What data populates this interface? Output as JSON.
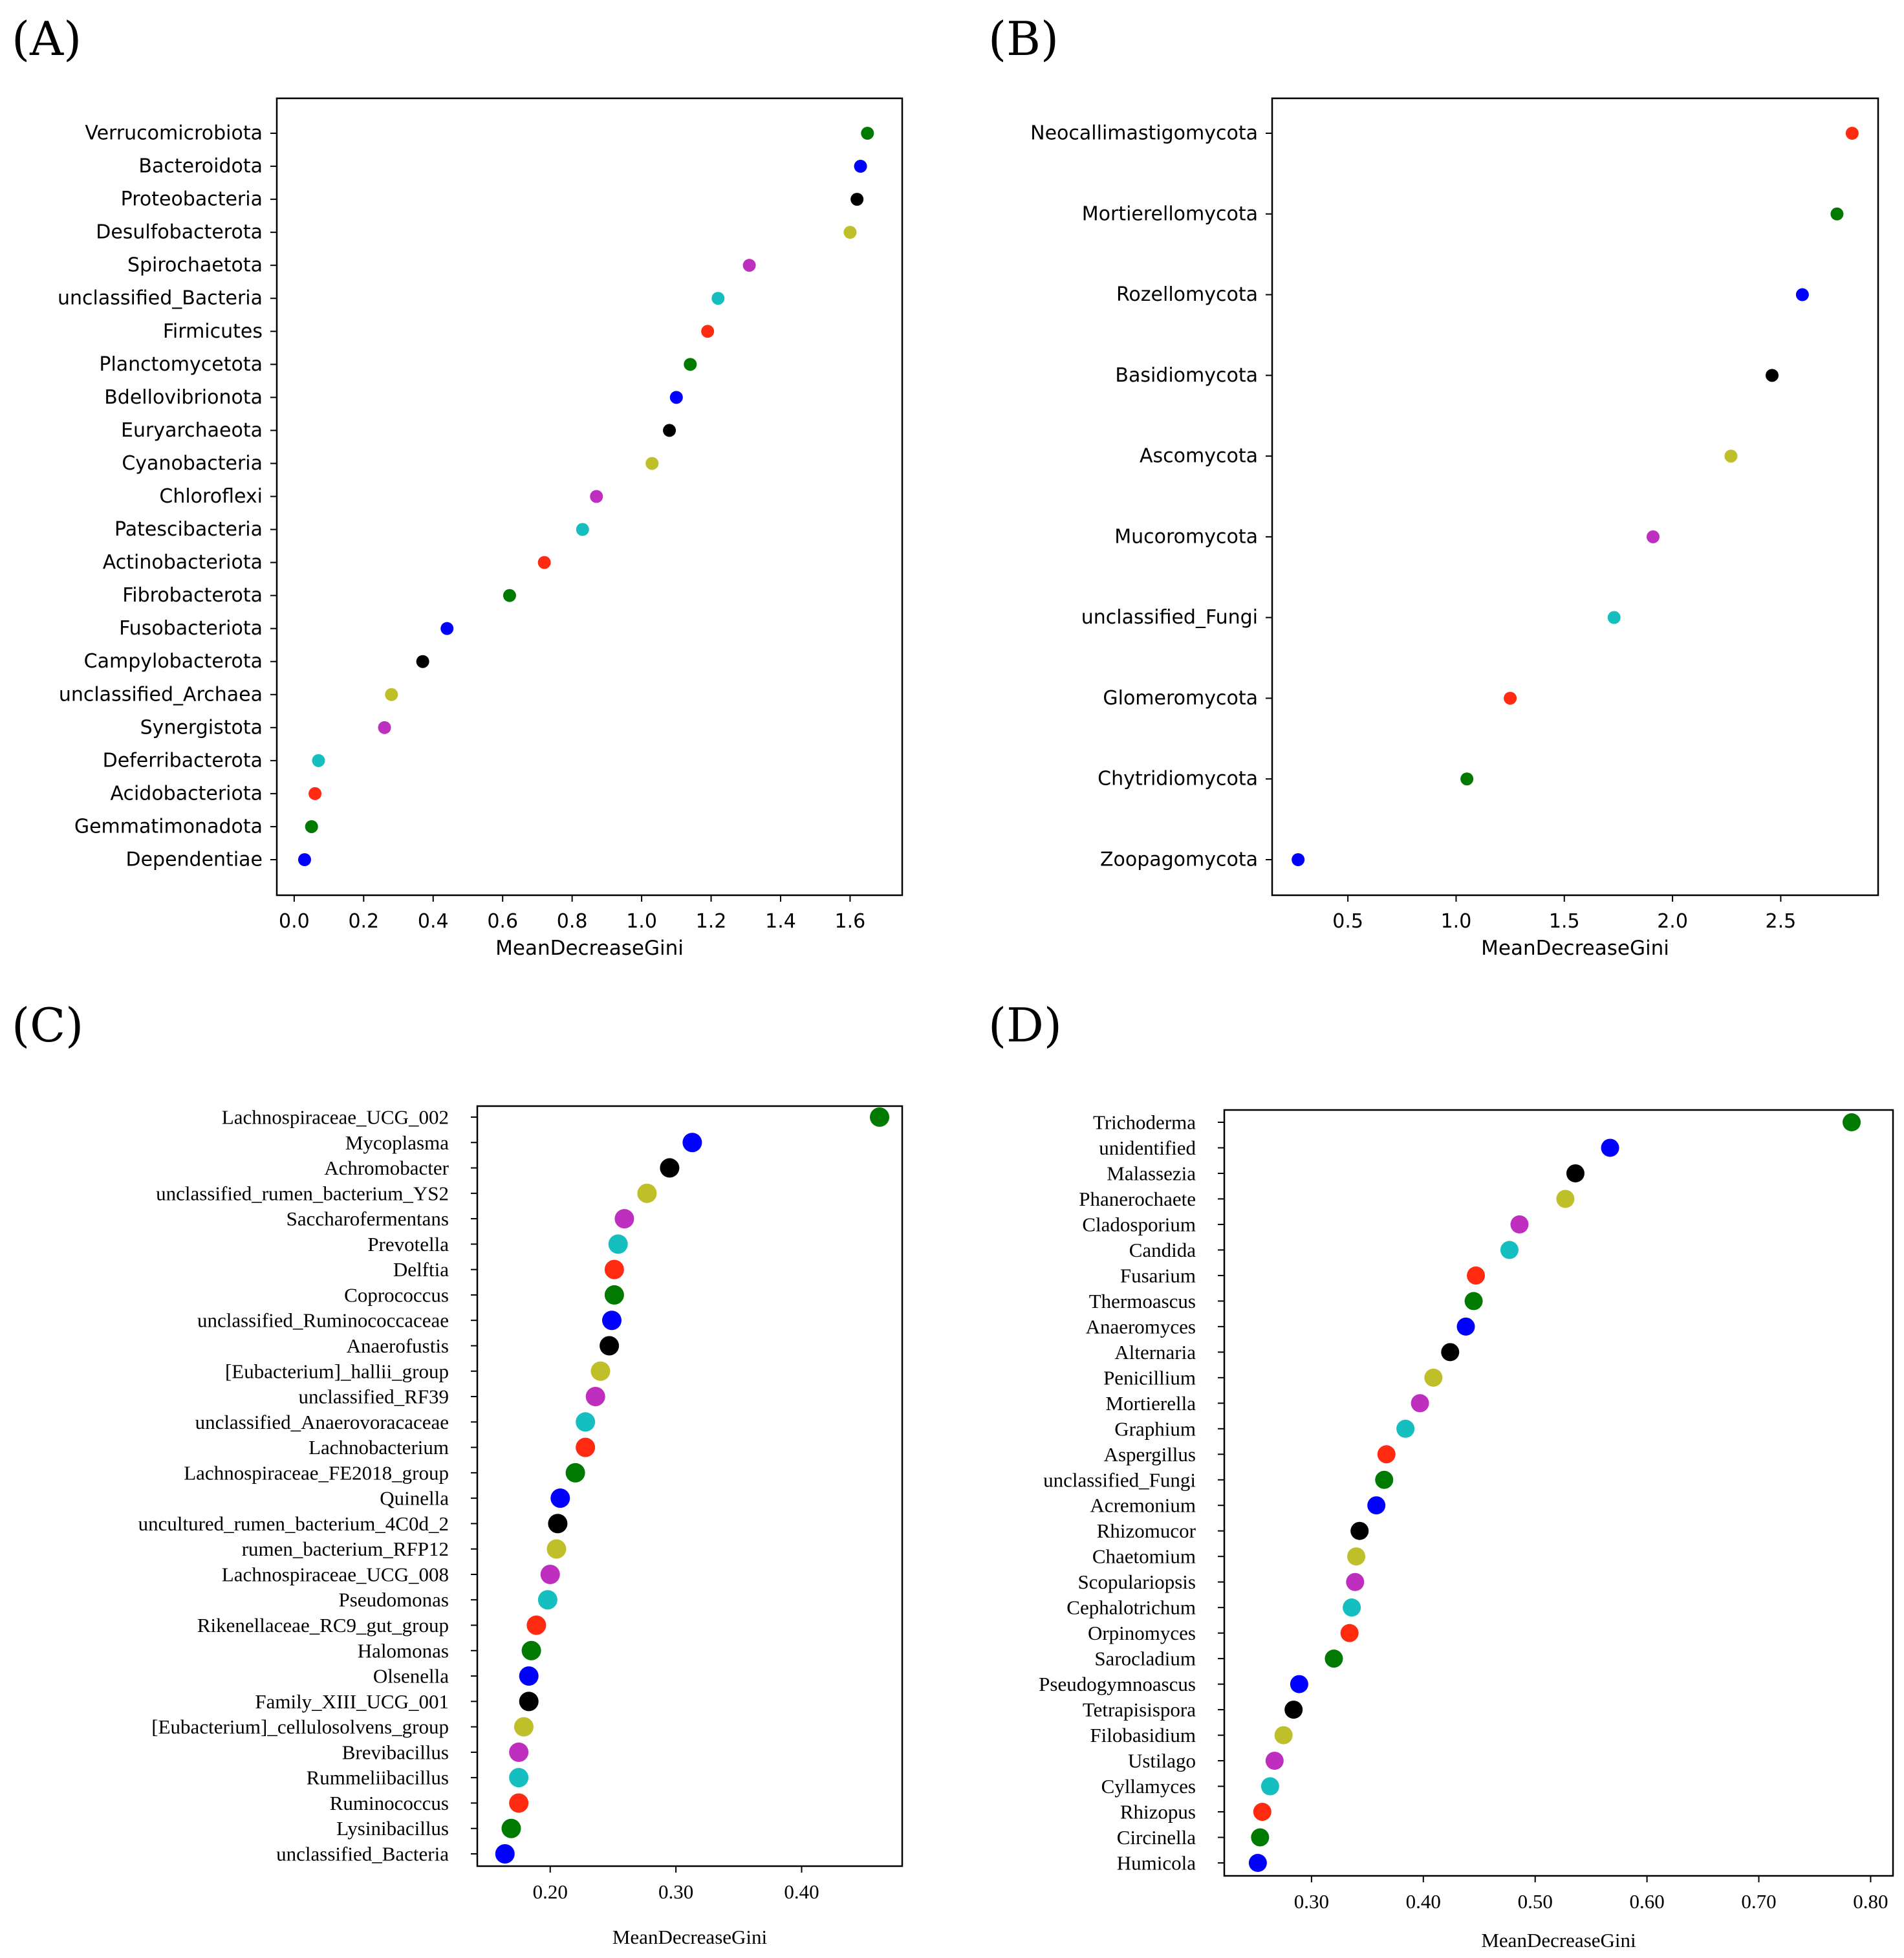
{
  "chart_data": [
    {
      "id": "A",
      "panel_label": "(A)",
      "type": "scatter",
      "xlabel": "MeanDecreaseGini",
      "xlim": [
        -0.05,
        1.75
      ],
      "xticks": [
        "0.0",
        "0.2",
        "0.4",
        "0.6",
        "0.8",
        "1.0",
        "1.2",
        "1.4",
        "1.6"
      ],
      "xtick_values": [
        0,
        0.2,
        0.4,
        0.6,
        0.8,
        1.0,
        1.2,
        1.4,
        1.6
      ],
      "grid": false,
      "categories": [
        "Verrucomicrobiota",
        "Bacteroidota",
        "Proteobacteria",
        "Desulfobacterota",
        "Spirochaetota",
        "unclassified_Bacteria",
        "Firmicutes",
        "Planctomycetota",
        "Bdellovibrionota",
        "Euryarchaeota",
        "Cyanobacteria",
        "Chloroflexi",
        "Patescibacteria",
        "Actinobacteriota",
        "Fibrobacterota",
        "Fusobacteriota",
        "Campylobacterota",
        "unclassified_Archaea",
        "Synergistota",
        "Deferribacterota",
        "Acidobacteriota",
        "Gemmatimonadota",
        "Dependentiae"
      ],
      "values": [
        1.65,
        1.63,
        1.62,
        1.6,
        1.31,
        1.22,
        1.19,
        1.14,
        1.1,
        1.08,
        1.03,
        0.87,
        0.83,
        0.72,
        0.62,
        0.44,
        0.37,
        0.28,
        0.26,
        0.07,
        0.06,
        0.05,
        0.03
      ],
      "colors": [
        "#007a00",
        "#0000ff",
        "#000000",
        "#bfbf2a",
        "#bf2fbf",
        "#16bfbf",
        "#ff2a0f",
        "#007a00",
        "#0000ff",
        "#000000",
        "#bfbf2a",
        "#bf2fbf",
        "#16bfbf",
        "#ff2a0f",
        "#007a00",
        "#0000ff",
        "#000000",
        "#bfbf2a",
        "#bf2fbf",
        "#16bfbf",
        "#ff2a0f",
        "#007a00",
        "#0000ff"
      ]
    },
    {
      "id": "B",
      "panel_label": "(B)",
      "type": "scatter",
      "xlabel": "MeanDecreaseGini",
      "xlim": [
        0.15,
        2.95
      ],
      "xticks": [
        "0.5",
        "1.0",
        "1.5",
        "2.0",
        "2.5"
      ],
      "xtick_values": [
        0.5,
        1.0,
        1.5,
        2.0,
        2.5
      ],
      "grid": false,
      "categories": [
        "Neocallimastigomycota",
        "Mortierellomycota",
        "Rozellomycota",
        "Basidiomycota",
        "Ascomycota",
        "Mucoromycota",
        "unclassified_Fungi",
        "Glomeromycota",
        "Chytridiomycota",
        "Zoopagomycota"
      ],
      "values": [
        2.83,
        2.76,
        2.6,
        2.46,
        2.27,
        1.91,
        1.73,
        1.25,
        1.05,
        0.27
      ],
      "colors": [
        "#ff2a0f",
        "#007a00",
        "#0000ff",
        "#000000",
        "#bfbf2a",
        "#bf2fbf",
        "#16bfbf",
        "#ff2a0f",
        "#007a00",
        "#0000ff"
      ]
    },
    {
      "id": "C",
      "panel_label": "(C)",
      "type": "scatter",
      "xlabel": "MeanDecreaseGini",
      "xlim": [
        0.142,
        0.48
      ],
      "xticks": [
        "0.20",
        "0.30",
        "0.40"
      ],
      "xtick_values": [
        0.2,
        0.3,
        0.4
      ],
      "grid": false,
      "categories": [
        "Lachnospiraceae_UCG_002",
        "Mycoplasma",
        "Achromobacter",
        "unclassified_rumen_bacterium_YS2",
        "Saccharofermentans",
        "Prevotella",
        "Delftia",
        "Coprococcus",
        "unclassified_Ruminococcaceae",
        "Anaerofustis",
        "[Eubacterium]_hallii_group",
        "unclassified_RF39",
        "unclassified_Anaerovoracaceae",
        "Lachnobacterium",
        "Lachnospiraceae_FE2018_group",
        "Quinella",
        "uncultured_rumen_bacterium_4C0d_2",
        "rumen_bacterium_RFP12",
        "Lachnospiraceae_UCG_008",
        "Pseudomonas",
        "Rikenellaceae_RC9_gut_group",
        "Halomonas",
        "Olsenella",
        "Family_XIII_UCG_001",
        "[Eubacterium]_cellulosolvens_group",
        "Brevibacillus",
        "Rummeliibacillus",
        "Ruminococcus",
        "Lysinibacillus",
        "unclassified_Bacteria"
      ],
      "values": [
        0.462,
        0.313,
        0.295,
        0.277,
        0.259,
        0.254,
        0.251,
        0.251,
        0.249,
        0.247,
        0.24,
        0.236,
        0.228,
        0.228,
        0.22,
        0.208,
        0.206,
        0.205,
        0.2,
        0.198,
        0.189,
        0.185,
        0.183,
        0.183,
        0.179,
        0.175,
        0.175,
        0.175,
        0.169,
        0.164
      ],
      "colors": [
        "#007a00",
        "#0000ff",
        "#000000",
        "#bfbf2a",
        "#bf2fbf",
        "#16bfbf",
        "#ff2a0f",
        "#007a00",
        "#0000ff",
        "#000000",
        "#bfbf2a",
        "#bf2fbf",
        "#16bfbf",
        "#ff2a0f",
        "#007a00",
        "#0000ff",
        "#000000",
        "#bfbf2a",
        "#bf2fbf",
        "#16bfbf",
        "#ff2a0f",
        "#007a00",
        "#0000ff",
        "#000000",
        "#bfbf2a",
        "#bf2fbf",
        "#16bfbf",
        "#ff2a0f",
        "#007a00",
        "#0000ff"
      ]
    },
    {
      "id": "D",
      "panel_label": "(D)",
      "type": "scatter",
      "xlabel": "MeanDecreaseGini",
      "xlim": [
        0.222,
        0.82
      ],
      "xticks": [
        "0.30",
        "0.40",
        "0.50",
        "0.60",
        "0.70",
        "0.80"
      ],
      "xtick_values": [
        0.3,
        0.4,
        0.5,
        0.6,
        0.7,
        0.8
      ],
      "grid": false,
      "categories": [
        "Trichoderma",
        "unidentified",
        "Malassezia",
        "Phanerochaete",
        "Cladosporium",
        "Candida",
        "Fusarium",
        "Thermoascus",
        "Anaeromyces",
        "Alternaria",
        "Penicillium",
        "Mortierella",
        "Graphium",
        "Aspergillus",
        "unclassified_Fungi",
        "Acremonium",
        "Rhizomucor",
        "Chaetomium",
        "Scopulariopsis",
        "Cephalotrichum",
        "Orpinomyces",
        "Sarocladium",
        "Pseudogymnoascus",
        "Tetrapisispora",
        "Filobasidium",
        "Ustilago",
        "Cyllamyces",
        "Rhizopus",
        "Circinella",
        "Humicola"
      ],
      "values": [
        0.783,
        0.567,
        0.536,
        0.527,
        0.486,
        0.477,
        0.447,
        0.445,
        0.438,
        0.424,
        0.409,
        0.397,
        0.384,
        0.367,
        0.365,
        0.358,
        0.343,
        0.34,
        0.339,
        0.336,
        0.334,
        0.32,
        0.289,
        0.284,
        0.275,
        0.267,
        0.263,
        0.256,
        0.254,
        0.252
      ],
      "colors": [
        "#007a00",
        "#0000ff",
        "#000000",
        "#bfbf2a",
        "#bf2fbf",
        "#16bfbf",
        "#ff2a0f",
        "#007a00",
        "#0000ff",
        "#000000",
        "#bfbf2a",
        "#bf2fbf",
        "#16bfbf",
        "#ff2a0f",
        "#007a00",
        "#0000ff",
        "#000000",
        "#bfbf2a",
        "#bf2fbf",
        "#16bfbf",
        "#ff2a0f",
        "#007a00",
        "#0000ff",
        "#000000",
        "#bfbf2a",
        "#bf2fbf",
        "#16bfbf",
        "#ff2a0f",
        "#007a00",
        "#0000ff"
      ]
    }
  ]
}
